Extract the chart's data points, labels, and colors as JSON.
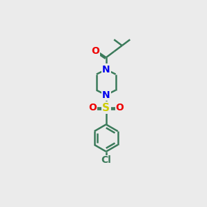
{
  "bg_color": "#ebebeb",
  "bond_color": "#3a7a5a",
  "N_color": "#0000ee",
  "O_color": "#ee0000",
  "S_color": "#cccc00",
  "Cl_color": "#3a7a5a",
  "line_width": 1.8,
  "figsize": [
    3.0,
    3.0
  ],
  "dpi": 100,
  "xlim": [
    -5,
    5
  ],
  "ylim": [
    -12,
    8
  ]
}
